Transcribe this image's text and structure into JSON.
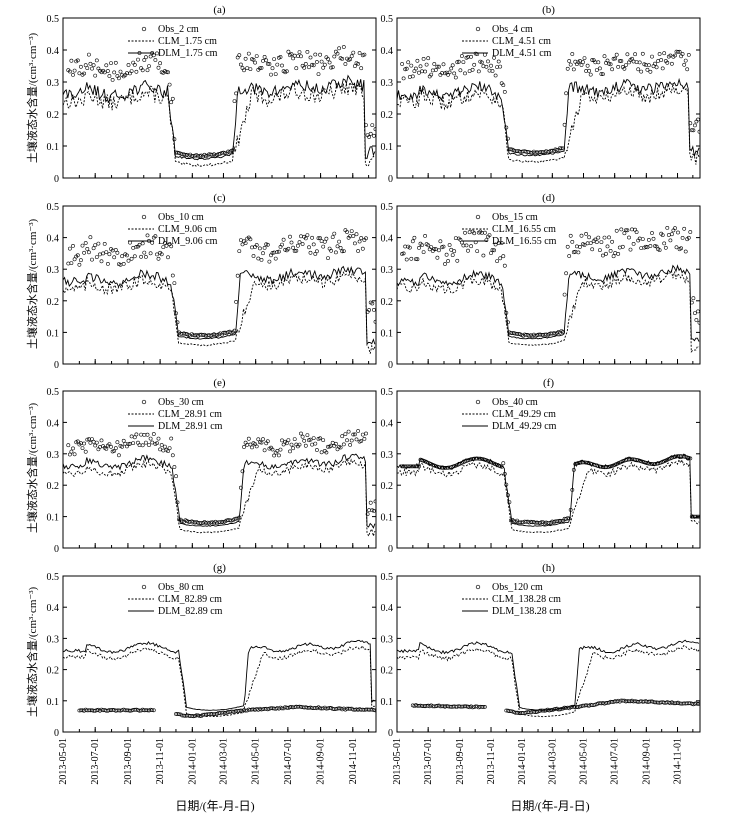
{
  "figure": {
    "ylabel": "土壤液态水含量/(cm³·cm⁻³)",
    "xlabel": "日期/(年-月-日)",
    "x_tick_labels": [
      "2013-05-01",
      "2013-07-01",
      "2013-09-01",
      "2013-11-01",
      "2014-01-01",
      "2014-03-01",
      "2014-05-01",
      "2014-07-01",
      "2014-09-01",
      "2014-11-01"
    ],
    "y_tick_labels": [
      "0",
      "0.1",
      "0.2",
      "0.3",
      "0.4",
      "0.5"
    ]
  },
  "chart_data": [
    {
      "type": "line",
      "panel": "(a)",
      "xlim": [
        "2013-05-01",
        "2014-12-15"
      ],
      "ylim": [
        0,
        0.5
      ],
      "series": [
        {
          "name": "Obs_2 cm",
          "style": "circles"
        },
        {
          "name": "CLM_1.75 cm",
          "style": "dotted"
        },
        {
          "name": "DLM_1.75 cm",
          "style": "solid"
        }
      ],
      "shape": {
        "summer13": 0.27,
        "winter": 0.06,
        "summer14": 0.3,
        "late": 0.08,
        "dropDate": "2013-11-15",
        "riseDate": "2014-03-20",
        "endDate": "2014-11-25",
        "obsOffset": 0.08,
        "noise": 0.05,
        "obsGap": false
      },
      "annotations": []
    },
    {
      "type": "line",
      "panel": "(b)",
      "xlim": [
        "2013-05-01",
        "2014-12-15"
      ],
      "ylim": [
        0,
        0.5
      ],
      "series": [
        {
          "name": "Obs_4 cm",
          "style": "circles"
        },
        {
          "name": "CLM_4.51 cm",
          "style": "dotted"
        },
        {
          "name": "DLM_4.51 cm",
          "style": "solid"
        }
      ],
      "shape": {
        "summer13": 0.27,
        "winter": 0.07,
        "summer14": 0.3,
        "late": 0.08,
        "dropDate": "2013-11-20",
        "riseDate": "2014-03-25",
        "endDate": "2014-11-25",
        "obsOffset": 0.08,
        "noise": 0.045,
        "obsGap": false
      },
      "annotations": []
    },
    {
      "type": "line",
      "panel": "(c)",
      "xlim": [
        "2013-05-01",
        "2014-12-15"
      ],
      "ylim": [
        0,
        0.5
      ],
      "series": [
        {
          "name": "Obs_10 cm",
          "style": "circles"
        },
        {
          "name": "CLM_9.06 cm",
          "style": "dotted"
        },
        {
          "name": "DLM_9.06 cm",
          "style": "solid"
        }
      ],
      "shape": {
        "summer13": 0.27,
        "winter": 0.08,
        "summer14": 0.3,
        "late": 0.07,
        "dropDate": "2013-11-20",
        "riseDate": "2014-03-25",
        "endDate": "2014-11-28",
        "obsOffset": 0.09,
        "noise": 0.035,
        "obsGap": false
      },
      "annotations": []
    },
    {
      "type": "line",
      "panel": "(d)",
      "xlim": [
        "2013-05-01",
        "2014-12-15"
      ],
      "ylim": [
        0,
        0.5
      ],
      "series": [
        {
          "name": "Obs_15 cm",
          "style": "circles"
        },
        {
          "name": "CLM_16.55 cm",
          "style": "dotted"
        },
        {
          "name": "DLM_16.55 cm",
          "style": "solid"
        }
      ],
      "shape": {
        "summer13": 0.27,
        "winter": 0.08,
        "summer14": 0.3,
        "late": 0.07,
        "dropDate": "2013-11-20",
        "riseDate": "2014-03-25",
        "endDate": "2014-11-28",
        "obsOffset": 0.1,
        "noise": 0.03,
        "obsGap": false
      },
      "annotations": []
    },
    {
      "type": "line",
      "panel": "(e)",
      "xlim": [
        "2013-05-01",
        "2014-12-15"
      ],
      "ylim": [
        0,
        0.5
      ],
      "series": [
        {
          "name": "Obs_30 cm",
          "style": "circles"
        },
        {
          "name": "CLM_28.91 cm",
          "style": "dotted"
        },
        {
          "name": "DLM_28.91 cm",
          "style": "solid"
        }
      ],
      "shape": {
        "summer13": 0.27,
        "winter": 0.07,
        "summer14": 0.29,
        "late": 0.07,
        "dropDate": "2013-11-22",
        "riseDate": "2014-04-01",
        "endDate": "2014-11-28",
        "obsOffset": 0.06,
        "noise": 0.025,
        "obsGap": false
      },
      "annotations": []
    },
    {
      "type": "line",
      "panel": "(f)",
      "xlim": [
        "2013-05-01",
        "2014-12-15"
      ],
      "ylim": [
        0,
        0.5
      ],
      "series": [
        {
          "name": "Obs_40 cm",
          "style": "circles"
        },
        {
          "name": "CLM_49.29 cm",
          "style": "dotted"
        },
        {
          "name": "DLM_49.29 cm",
          "style": "solid"
        }
      ],
      "shape": {
        "summer13": 0.27,
        "winter": 0.07,
        "summer14": 0.29,
        "late": 0.1,
        "dropDate": "2013-11-25",
        "riseDate": "2014-04-05",
        "endDate": "2014-11-28",
        "obsOffset": 0.0,
        "noise": 0.02,
        "obsGap": false
      },
      "annotations": []
    },
    {
      "type": "line",
      "panel": "(g)",
      "xlim": [
        "2013-05-01",
        "2014-12-15"
      ],
      "ylim": [
        0,
        0.5
      ],
      "series": [
        {
          "name": "Obs_80 cm",
          "style": "circles"
        },
        {
          "name": "CLM_82.89 cm",
          "style": "dotted"
        },
        {
          "name": "DLM_82.89 cm",
          "style": "solid"
        }
      ],
      "shape": {
        "summer13": 0.27,
        "winter": 0.07,
        "summer14": 0.29,
        "late": 0.1,
        "dropDate": "2013-12-05",
        "riseDate": "2014-04-10",
        "endDate": "2014-12-05",
        "obsMode": "flat",
        "obsStart": "2013-06-01",
        "obsVals": [
          0.07,
          0.07,
          0.05,
          0.07,
          0.08,
          0.07
        ]
      },
      "annotations": []
    },
    {
      "type": "line",
      "panel": "(h)",
      "xlim": [
        "2013-05-01",
        "2014-12-15"
      ],
      "ylim": [
        0,
        0.5
      ],
      "series": [
        {
          "name": "Obs_120 cm",
          "style": "circles"
        },
        {
          "name": "CLM_138.28 cm",
          "style": "dotted"
        },
        {
          "name": "DLM_138.28 cm",
          "style": "solid"
        }
      ],
      "shape": {
        "summer13": 0.27,
        "winter": 0.07,
        "summer14": 0.29,
        "late": 0.28,
        "dropDate": "2013-12-10",
        "riseDate": "2014-04-15",
        "endDate": "2014-12-15",
        "obsMode": "flat",
        "obsStart": "2013-06-01",
        "obsVals": [
          0.085,
          0.08,
          0.06,
          0.08,
          0.1,
          0.09
        ]
      },
      "annotations": []
    }
  ]
}
